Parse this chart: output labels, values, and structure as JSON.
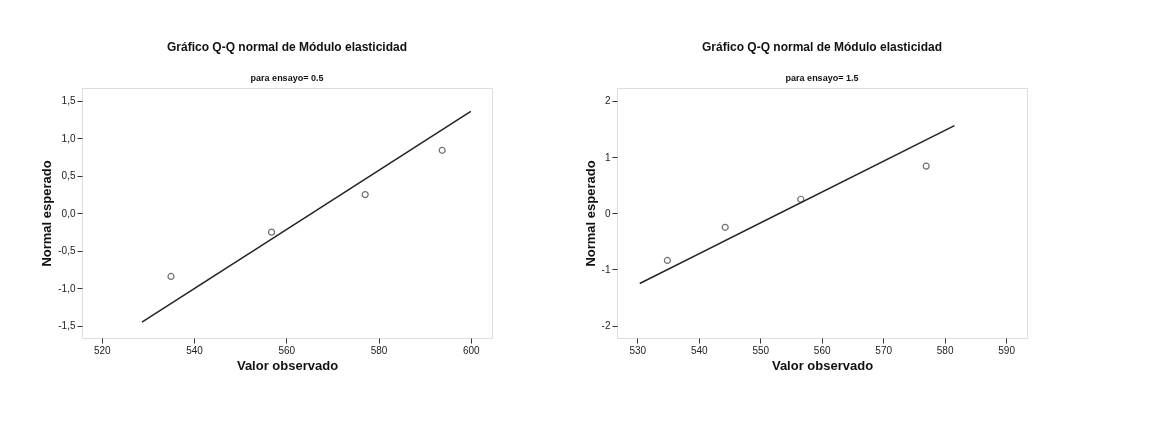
{
  "chart_data": [
    {
      "type": "scatter",
      "title": "Gráfico Q-Q normal de Módulo elasticidad",
      "subtitle": "para ensayo= 0.5",
      "xlabel": "Valor observado",
      "ylabel": "Normal esperado",
      "xlim": [
        515.7,
        604.6
      ],
      "ylim": [
        -1.66,
        1.67
      ],
      "xticks": [
        520,
        540,
        560,
        580,
        600
      ],
      "yticks": [
        {
          "value": -1.5,
          "label": "-1,5"
        },
        {
          "value": -1.0,
          "label": "-1,0"
        },
        {
          "value": -0.5,
          "label": "-0,5"
        },
        {
          "value": 0,
          "label": "0,0"
        },
        {
          "value": 0.5,
          "label": "0,5"
        },
        {
          "value": 1.0,
          "label": "1,0"
        },
        {
          "value": 1.5,
          "label": "1,5"
        }
      ],
      "grid": false,
      "legend": false,
      "series": [
        {
          "color": "#333333",
          "marker": "circle",
          "x": [
            535.0,
            556.8,
            577.1,
            593.8
          ],
          "values": [
            -0.84,
            -0.25,
            0.25,
            0.84
          ]
        },
        {
          "type": "line",
          "color": "#222222",
          "marker": "none",
          "line_style": "solid",
          "x": [
            528.7,
            600.0
          ],
          "values": [
            -1.45,
            1.36
          ]
        }
      ]
    },
    {
      "type": "scatter",
      "title": "Gráfico Q-Q normal de Módulo elasticidad",
      "subtitle": "para ensayo= 1.5",
      "xlabel": "Valor observado",
      "ylabel": "Normal esperado",
      "xlim": [
        526.7,
        593.4
      ],
      "ylim": [
        -2.22,
        2.23
      ],
      "xticks": [
        530,
        540,
        550,
        560,
        570,
        580,
        590
      ],
      "yticks": [
        -2,
        -1,
        0,
        1,
        2
      ],
      "grid": false,
      "legend": false,
      "series": [
        {
          "color": "#333333",
          "marker": "circle",
          "x": [
            534.9,
            544.3,
            556.6,
            577.0
          ],
          "values": [
            -0.84,
            -0.25,
            0.25,
            0.84
          ]
        },
        {
          "type": "line",
          "color": "#222222",
          "marker": "none",
          "line_style": "solid",
          "x": [
            530.4,
            581.6
          ],
          "values": [
            -1.25,
            1.56
          ]
        }
      ]
    }
  ]
}
